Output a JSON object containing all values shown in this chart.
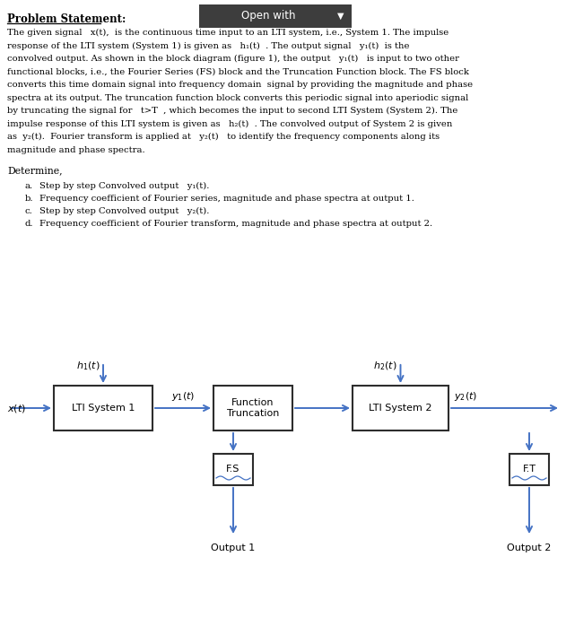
{
  "bg_color": "#ffffff",
  "header_bg": "#3d3d3d",
  "header_text": "Open with",
  "header_text_color": "#ffffff",
  "title_text": "Problem Statement:",
  "body_lines": [
    "The given signal   x(t),  is the continuous time input to an LTI system, i.e., System 1. The impulse",
    "response of the LTI system (System 1) is given as   h₁(t)  . The output signal   y₁(t)  is the",
    "convolved output. As shown in the block diagram (figure 1), the output   y₁(t)   is input to two other",
    "functional blocks, i.e., the Fourier Series (FS) block and the Truncation Function block. The FS block",
    "converts this time domain signal into frequency domain  signal by providing the magnitude and phase",
    "spectra at its output. The truncation function block converts this periodic signal into aperiodic signal",
    "by truncating the signal for   t>T  , which becomes the input to second LTI System (System 2). The",
    "impulse response of this LTI system is given as   h₂(t)  . The convolved output of System 2 is given",
    "as  y₂(t).  Fourier transform is applied at   y₂(t)   to identify the frequency components along its",
    "magnitude and phase spectra."
  ],
  "determine_text": "Determine,",
  "items": [
    [
      "a.",
      "Step by step Convolved output   y₁(t)."
    ],
    [
      "b.",
      "Frequency coefficient of Fourier series, magnitude and phase spectra at output 1."
    ],
    [
      "c.",
      "Step by step Convolved output   y₂(t)."
    ],
    [
      "d.",
      "Frequency coefficient of Fourier transform, magnitude and phase spectra at output 2."
    ]
  ],
  "arrow_color": "#4472c4",
  "box_edge_color": "#2d2d2d",
  "diagram": {
    "lti1_label": "LTI System 1",
    "lti2_label": "LTI System 2",
    "trunc_label": [
      "Truncation",
      "Function"
    ],
    "fs_label": "F.S",
    "ft_label": "F.T",
    "x_label": "x(t)",
    "h1_label": "h₁(t)",
    "h2_label": "h₂(t)",
    "y1_label": "y₁(t)",
    "y2_label": "y₂(t)",
    "out1_label": "Output 1",
    "out2_label": "Output 2"
  }
}
